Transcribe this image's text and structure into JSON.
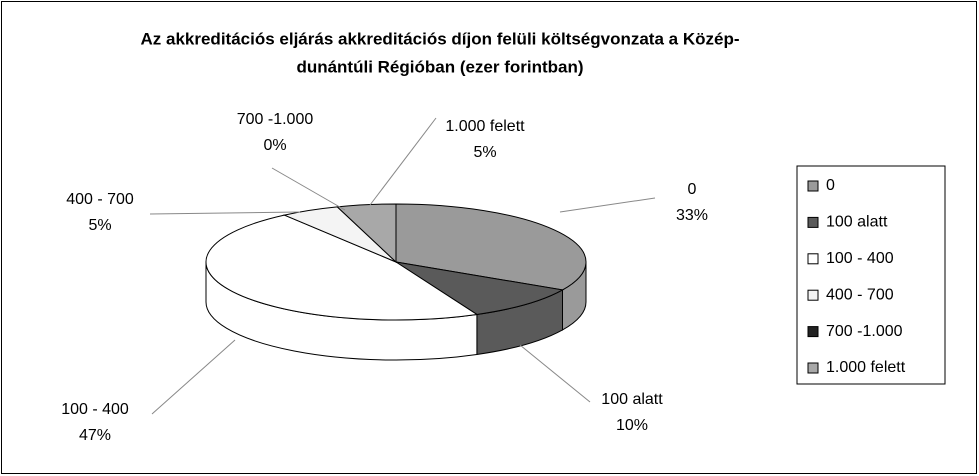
{
  "chart_data": {
    "type": "pie3d",
    "title": [
      "Az akkreditációs eljárás akkreditációs díjon felüli költségvonzata a  Közép-",
      "dunántúli Régióban (ezer forintban)"
    ],
    "categories": [
      "0",
      "100 alatt",
      "100 - 400",
      "400 - 700",
      "700 -1.000",
      "1.000 felett"
    ],
    "values": [
      33,
      10,
      47,
      5,
      0,
      5
    ],
    "value_labels": [
      "33%",
      "10%",
      "47%",
      "5%",
      "0%",
      "5%"
    ],
    "colors": [
      "#9a9a9a",
      "#5a5a5a",
      "#ffffff",
      "#f4f4f4",
      "#222222",
      "#a8a8a8"
    ],
    "legend": "right"
  }
}
